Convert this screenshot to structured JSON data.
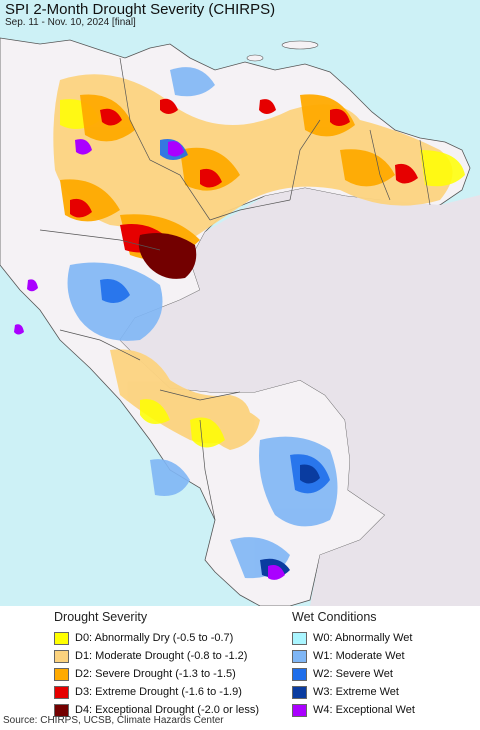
{
  "title": "SPI 2-Month Drought Severity (CHIRPS)",
  "subtitle": "Sep. 11 - Nov. 10, 2024 [final]",
  "source": "Source: CHIRPS, UCSB, Climate Hazards Center",
  "colors": {
    "ocean": "#cdf1f6",
    "land_neutral": "#f5f2f5",
    "no_data": "#e8e3ea",
    "border": "#555555"
  },
  "legend": {
    "drought": {
      "heading": "Drought Severity",
      "items": [
        {
          "label": "D0: Abnormally Dry (-0.5 to -0.7)",
          "color": "#ffff00"
        },
        {
          "label": "D1: Moderate Drought (-0.8 to -1.2)",
          "color": "#fcd37f"
        },
        {
          "label": "D2: Severe Drought (-1.3 to -1.5)",
          "color": "#ffaa00"
        },
        {
          "label": "D3: Extreme Drought (-1.6 to -1.9)",
          "color": "#e60000"
        },
        {
          "label": "D4: Exceptional Drought (-2.0 or less)",
          "color": "#730000"
        }
      ]
    },
    "wet": {
      "heading": "Wet Conditions",
      "items": [
        {
          "label": "W0: Abnormally Wet",
          "color": "#aaf5ff"
        },
        {
          "label": "W1: Moderate Wet",
          "color": "#7fb6f5"
        },
        {
          "label": "W2: Severe Wet",
          "color": "#1e6eeb"
        },
        {
          "label": "W3: Extreme Wet",
          "color": "#0a3ca0"
        },
        {
          "label": "W4: Exceptional Wet",
          "color": "#aa00ff"
        }
      ]
    }
  }
}
